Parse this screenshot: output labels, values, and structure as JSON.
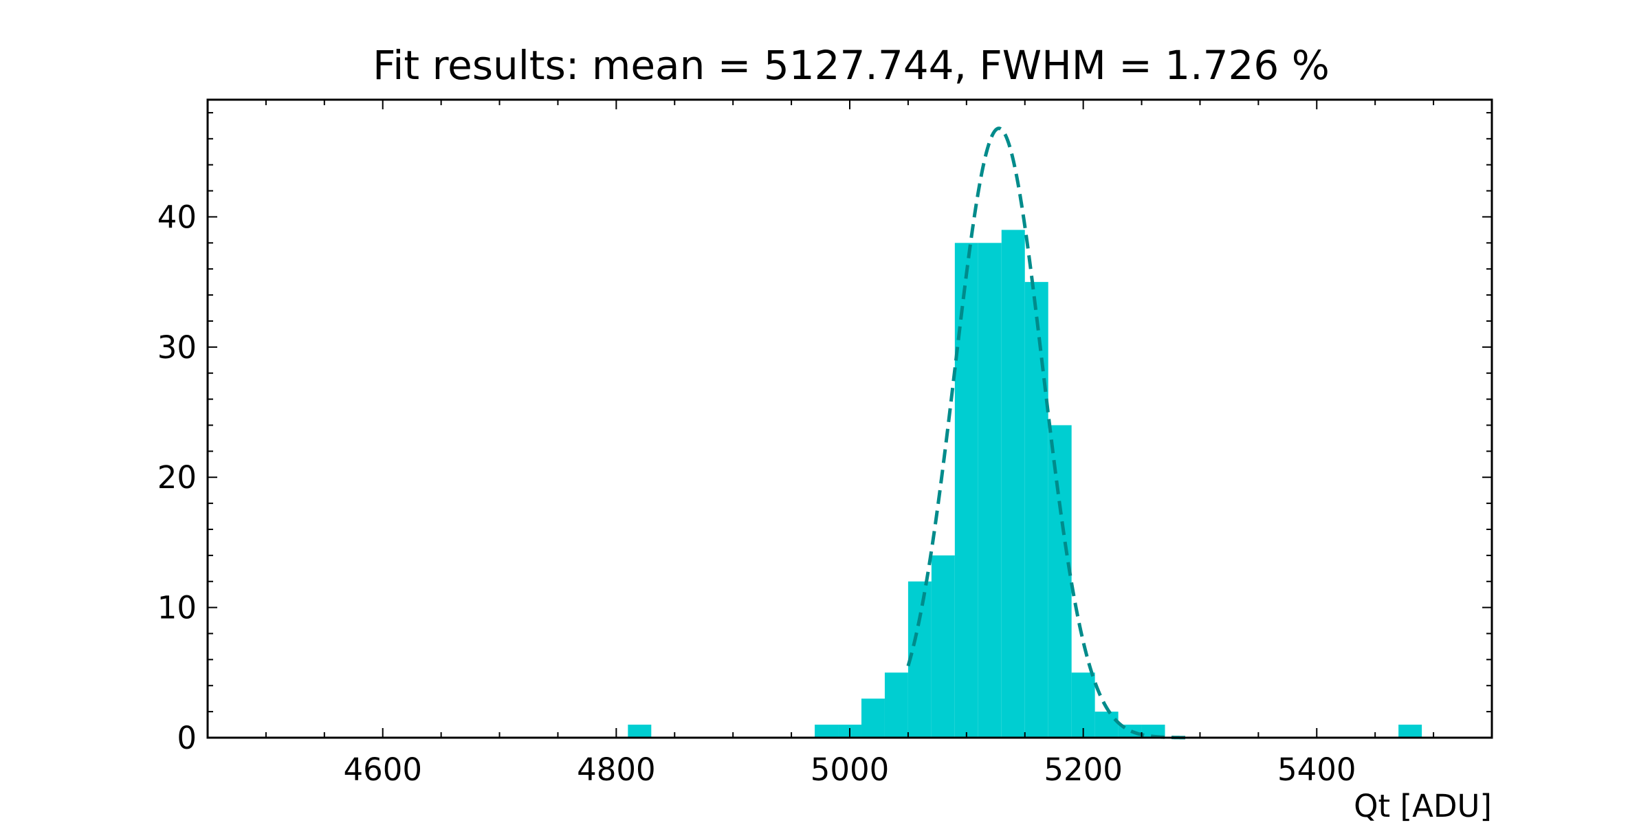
{
  "chart_data": {
    "type": "bar",
    "title": "Fit results: mean = 5127.744,  FWHM = 1.726 %",
    "xlabel": "Qt [ADU]",
    "ylabel": "",
    "xlim": [
      4450,
      5550
    ],
    "ylim": [
      0,
      49
    ],
    "bin_width": 20,
    "x_major_ticks": [
      4600,
      4800,
      5000,
      5200,
      5400
    ],
    "x_minor_step": 50,
    "y_major_ticks": [
      0,
      10,
      20,
      30,
      40
    ],
    "y_minor_step": 2,
    "grid": false,
    "bins": [
      {
        "left": 4810,
        "count": 1
      },
      {
        "left": 4970,
        "count": 1
      },
      {
        "left": 4990,
        "count": 1
      },
      {
        "left": 5010,
        "count": 3
      },
      {
        "left": 5030,
        "count": 5
      },
      {
        "left": 5050,
        "count": 12
      },
      {
        "left": 5070,
        "count": 14
      },
      {
        "left": 5090,
        "count": 38
      },
      {
        "left": 5110,
        "count": 38
      },
      {
        "left": 5130,
        "count": 39
      },
      {
        "left": 5150,
        "count": 35
      },
      {
        "left": 5170,
        "count": 24
      },
      {
        "left": 5190,
        "count": 5
      },
      {
        "left": 5210,
        "count": 2
      },
      {
        "left": 5230,
        "count": 1
      },
      {
        "left": 5250,
        "count": 1
      },
      {
        "left": 5470,
        "count": 1
      }
    ],
    "fit": {
      "type": "gaussian",
      "mean": 5127.744,
      "fwhm_percent": 1.726,
      "amplitude": 46.8,
      "x_range": [
        5050,
        5290
      ]
    },
    "colors": {
      "bars": "#00CED1",
      "fit_line": "#008B8B",
      "axes": "#000000"
    }
  }
}
